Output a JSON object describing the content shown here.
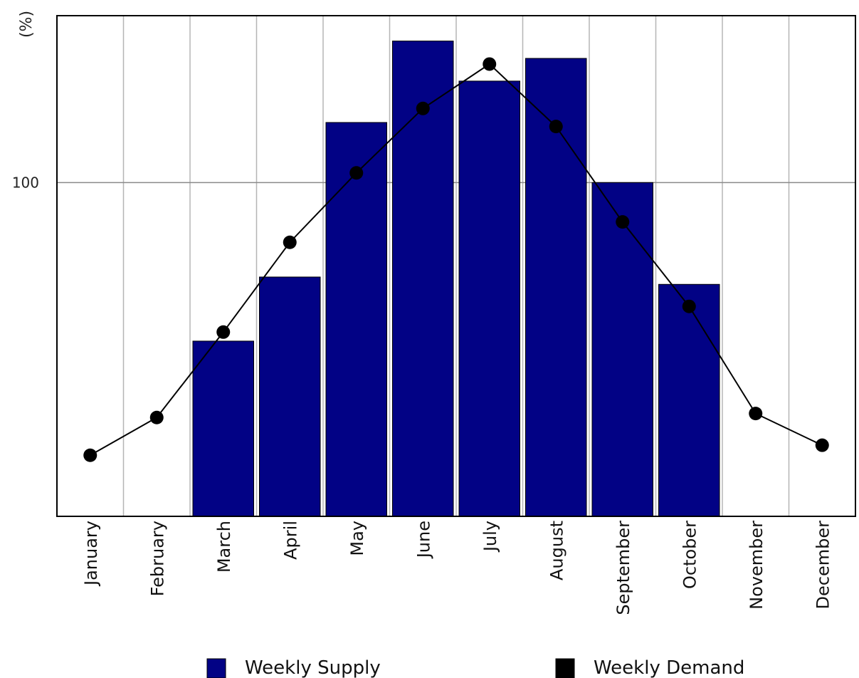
{
  "chart_data": {
    "type": "bar",
    "categories": [
      "January",
      "February",
      "March",
      "April",
      "May",
      "June",
      "July",
      "August",
      "September",
      "October",
      "November",
      "December"
    ],
    "ylabel": "(%)",
    "yticks": [
      100
    ],
    "ylim": [
      0,
      150
    ],
    "grid": true,
    "legend_position": "bottom",
    "series": [
      {
        "name": "Weekly Supply",
        "kind": "bar",
        "color": "#020285",
        "values": [
          0,
          0,
          52.5,
          71.7,
          118,
          142.4,
          130.4,
          137.2,
          100,
          69.5,
          0,
          0
        ]
      },
      {
        "name": "Weekly Demand",
        "kind": "line",
        "color": "#000000",
        "values": [
          18.3,
          29.6,
          55.2,
          82.1,
          102.9,
          122.2,
          135.5,
          116.8,
          88.2,
          62.9,
          30.8,
          21.3
        ]
      }
    ]
  }
}
